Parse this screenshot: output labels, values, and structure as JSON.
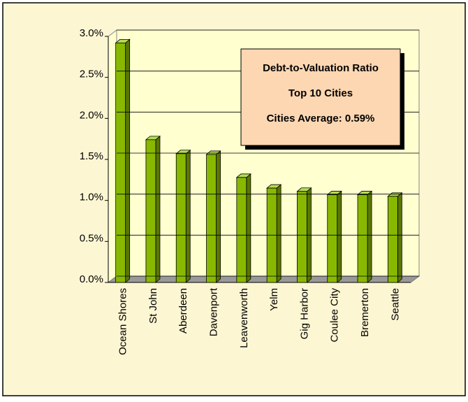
{
  "chart_data": {
    "type": "bar",
    "annotation_lines": [
      "Debt-to-Valuation Ratio",
      "Top 10 Cities",
      "Cities Average:  0.59%"
    ],
    "categories": [
      "Ocean Shores",
      "St John",
      "Aberdeen",
      "Davenport",
      "Leavenworth",
      "Yelm",
      "Gig Harbor",
      "Coulee City",
      "Bremerton",
      "Seattle"
    ],
    "values": [
      2.92,
      1.74,
      1.57,
      1.56,
      1.28,
      1.15,
      1.11,
      1.07,
      1.07,
      1.05
    ],
    "color": "#88b800",
    "ylim": [
      0,
      3
    ],
    "yticks": [
      {
        "value": 0,
        "label": "0.0%"
      },
      {
        "value": 0.5,
        "label": "0.5%"
      },
      {
        "value": 1,
        "label": "1.0%"
      },
      {
        "value": 1.5,
        "label": "1.5%"
      },
      {
        "value": 2,
        "label": "2.0%"
      },
      {
        "value": 2.5,
        "label": "2.5%"
      },
      {
        "value": 3,
        "label": "3.0%"
      }
    ],
    "grid": true
  }
}
